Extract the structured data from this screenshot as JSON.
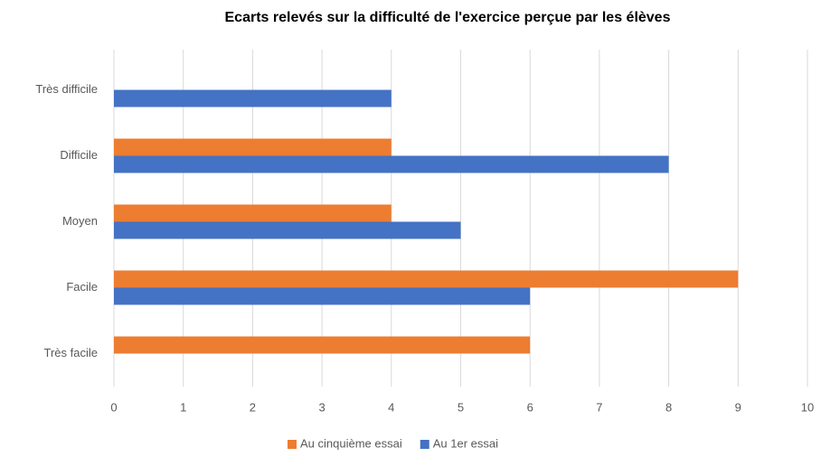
{
  "chart_data": {
    "type": "hbar",
    "title": "Ecarts relevés sur la difficulté de l'exercice perçue par les élèves",
    "categories": [
      "Très difficile",
      "Difficile",
      "Moyen",
      "Facile",
      "Très facile"
    ],
    "series": [
      {
        "name": "Au cinquième essai",
        "color": "#ed7d31",
        "values": [
          0,
          4,
          4,
          9,
          6
        ]
      },
      {
        "name": "Au 1er essai",
        "color": "#4472c4",
        "values": [
          4,
          8,
          5,
          6,
          0
        ]
      }
    ],
    "xlim": [
      0,
      10
    ],
    "xticks": [
      0,
      1,
      2,
      3,
      4,
      5,
      6,
      7,
      8,
      9,
      10
    ],
    "grid": true,
    "legend": "bottom"
  }
}
